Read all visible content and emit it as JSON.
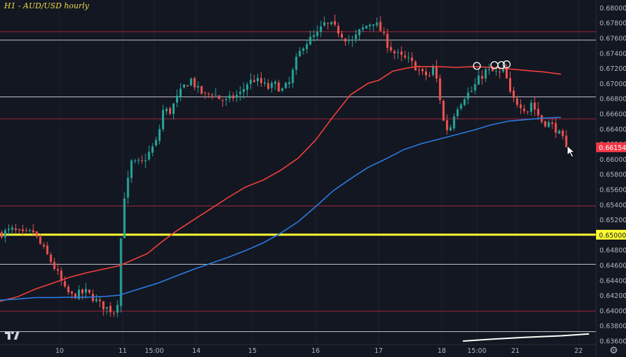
{
  "header": {
    "title": "H1 - AUD/USD hourly"
  },
  "icons": {
    "logo": "tradingview-logo-icon",
    "settings": "settings-gear-icon",
    "cursor": "mouse-pointer-icon"
  },
  "colors": {
    "background": "#131722",
    "up": "#26a69a",
    "down": "#ef5350",
    "ma_fast": "#f23f3a",
    "ma_slow": "#2a7be0",
    "level_red": "#b2293a",
    "level_white": "#d1d4dc",
    "level_yellow": "#ffff33",
    "axis_text": "#b2b5be",
    "price_tag": "#f23645"
  },
  "chart_data": {
    "type": "candlestick",
    "title": "H1 - AUD/USD hourly",
    "ylim": [
      0.6355,
      0.681
    ],
    "y_ticks": [
      "0.68000",
      "0.67800",
      "0.67600",
      "0.67400",
      "0.67200",
      "0.67000",
      "0.66800",
      "0.66600",
      "0.66400",
      "0.66200",
      "0.66000",
      "0.65800",
      "0.65600",
      "0.65400",
      "0.65200",
      "0.65000",
      "0.64800",
      "0.64600",
      "0.64400",
      "0.64200",
      "0.64000",
      "0.63800",
      "0.63600"
    ],
    "x_ticks": [
      {
        "label": "10",
        "t": 17
      },
      {
        "label": "11",
        "t": 35
      },
      {
        "label": "15:00",
        "t": 44
      },
      {
        "label": "14",
        "t": 56
      },
      {
        "label": "15",
        "t": 72
      },
      {
        "label": "16",
        "t": 90
      },
      {
        "label": "17",
        "t": 108
      },
      {
        "label": "18",
        "t": 126
      },
      {
        "label": "15:00",
        "t": 136
      },
      {
        "label": "21",
        "t": 147
      },
      {
        "label": "22",
        "t": 165
      }
    ],
    "x_range": [
      0,
      170
    ],
    "current_price": "0.66154",
    "current_value": 0.66154,
    "highlighted_level": "0.65000",
    "horizontal_levels": [
      {
        "value": 0.6768,
        "color": "red"
      },
      {
        "value": 0.6757,
        "color": "white"
      },
      {
        "value": 0.6682,
        "color": "white"
      },
      {
        "value": 0.6653,
        "color": "red"
      },
      {
        "value": 0.6538,
        "color": "red"
      },
      {
        "value": 0.65,
        "color": "yellow"
      },
      {
        "value": 0.6461,
        "color": "white"
      },
      {
        "value": 0.6399,
        "color": "red"
      },
      {
        "value": 0.6372,
        "color": "white"
      }
    ],
    "price_path": [
      [
        0,
        0.6502
      ],
      [
        3,
        0.6506
      ],
      [
        6,
        0.65
      ],
      [
        9,
        0.6504
      ],
      [
        10,
        0.6495
      ],
      [
        12,
        0.648
      ],
      [
        14,
        0.6465
      ],
      [
        16,
        0.6448
      ],
      [
        18,
        0.6427
      ],
      [
        20,
        0.6419
      ],
      [
        22,
        0.6422
      ],
      [
        24,
        0.6424
      ],
      [
        26,
        0.6417
      ],
      [
        28,
        0.6408
      ],
      [
        30,
        0.6403
      ],
      [
        32,
        0.6399
      ],
      [
        33,
        0.6412
      ],
      [
        34,
        0.6495
      ],
      [
        35,
        0.6552
      ],
      [
        36,
        0.6571
      ],
      [
        37,
        0.6595
      ],
      [
        38,
        0.6594
      ],
      [
        40,
        0.6595
      ],
      [
        42,
        0.6608
      ],
      [
        44,
        0.6622
      ],
      [
        45,
        0.664
      ],
      [
        46,
        0.6664
      ],
      [
        48,
        0.6663
      ],
      [
        50,
        0.668
      ],
      [
        52,
        0.6696
      ],
      [
        54,
        0.6705
      ],
      [
        56,
        0.6691
      ],
      [
        58,
        0.6684
      ],
      [
        60,
        0.6688
      ],
      [
        62,
        0.668
      ],
      [
        64,
        0.6676
      ],
      [
        66,
        0.6682
      ],
      [
        68,
        0.6686
      ],
      [
        70,
        0.67
      ],
      [
        72,
        0.6705
      ],
      [
        74,
        0.67
      ],
      [
        76,
        0.6694
      ],
      [
        78,
        0.6698
      ],
      [
        80,
        0.6691
      ],
      [
        82,
        0.67
      ],
      [
        84,
        0.673
      ],
      [
        86,
        0.6751
      ],
      [
        88,
        0.6758
      ],
      [
        90,
        0.6765
      ],
      [
        92,
        0.6778
      ],
      [
        94,
        0.6776
      ],
      [
        96,
        0.6769
      ],
      [
        98,
        0.676
      ],
      [
        100,
        0.6755
      ],
      [
        102,
        0.6768
      ],
      [
        104,
        0.6776
      ],
      [
        106,
        0.6782
      ],
      [
        108,
        0.677
      ],
      [
        110,
        0.6752
      ],
      [
        112,
        0.674
      ],
      [
        114,
        0.6734
      ],
      [
        116,
        0.673
      ],
      [
        118,
        0.6722
      ],
      [
        120,
        0.6712
      ],
      [
        122,
        0.671
      ],
      [
        123,
        0.672
      ],
      [
        124,
        0.6705
      ],
      [
        125,
        0.668
      ],
      [
        126,
        0.665
      ],
      [
        127,
        0.664
      ],
      [
        128,
        0.6643
      ],
      [
        129,
        0.666
      ],
      [
        130,
        0.667
      ],
      [
        132,
        0.6683
      ],
      [
        134,
        0.669
      ],
      [
        136,
        0.6705
      ],
      [
        138,
        0.6716
      ],
      [
        140,
        0.6715
      ],
      [
        142,
        0.6713
      ],
      [
        143,
        0.6717
      ],
      [
        144,
        0.6705
      ],
      [
        145,
        0.6685
      ],
      [
        146,
        0.6678
      ],
      [
        148,
        0.6672
      ],
      [
        150,
        0.6664
      ],
      [
        151,
        0.6675
      ],
      [
        152,
        0.6666
      ],
      [
        154,
        0.665
      ],
      [
        156,
        0.6647
      ],
      [
        158,
        0.664
      ],
      [
        160,
        0.6625
      ],
      [
        161,
        0.66154
      ]
    ],
    "series": [
      {
        "kind": "moving-average",
        "color": "red",
        "points": [
          [
            0,
            0.6412
          ],
          [
            5,
            0.6418
          ],
          [
            10,
            0.6428
          ],
          [
            15,
            0.6436
          ],
          [
            20,
            0.6444
          ],
          [
            25,
            0.645
          ],
          [
            30,
            0.6455
          ],
          [
            34,
            0.6459
          ],
          [
            38,
            0.6467
          ],
          [
            42,
            0.6475
          ],
          [
            46,
            0.649
          ],
          [
            50,
            0.6504
          ],
          [
            55,
            0.6519
          ],
          [
            60,
            0.6534
          ],
          [
            65,
            0.6549
          ],
          [
            70,
            0.6563
          ],
          [
            75,
            0.6572
          ],
          [
            80,
            0.6585
          ],
          [
            85,
            0.6601
          ],
          [
            90,
            0.6625
          ],
          [
            95,
            0.6656
          ],
          [
            100,
            0.6685
          ],
          [
            105,
            0.67
          ],
          [
            108,
            0.6704
          ],
          [
            112,
            0.6716
          ],
          [
            116,
            0.672
          ],
          [
            119,
            0.6722
          ],
          [
            125,
            0.6722
          ],
          [
            130,
            0.6721
          ],
          [
            135,
            0.6722
          ],
          [
            140,
            0.6721
          ],
          [
            145,
            0.6719
          ],
          [
            150,
            0.6717
          ],
          [
            155,
            0.6715
          ],
          [
            160,
            0.6712
          ]
        ]
      },
      {
        "kind": "moving-average",
        "color": "blue",
        "points": [
          [
            0,
            0.64135
          ],
          [
            5,
            0.6415
          ],
          [
            10,
            0.6417
          ],
          [
            15,
            0.6417
          ],
          [
            20,
            0.64175
          ],
          [
            25,
            0.64175
          ],
          [
            30,
            0.64185
          ],
          [
            34,
            0.642
          ],
          [
            38,
            0.6426
          ],
          [
            45,
            0.6436
          ],
          [
            50,
            0.6445
          ],
          [
            55,
            0.6454
          ],
          [
            60,
            0.6462
          ],
          [
            65,
            0.647
          ],
          [
            70,
            0.6479
          ],
          [
            75,
            0.6489
          ],
          [
            80,
            0.6502
          ],
          [
            85,
            0.6517
          ],
          [
            90,
            0.6537
          ],
          [
            95,
            0.6558
          ],
          [
            100,
            0.6574
          ],
          [
            105,
            0.6589
          ],
          [
            110,
            0.66
          ],
          [
            115,
            0.6612
          ],
          [
            120,
            0.662
          ],
          [
            125,
            0.6626
          ],
          [
            130,
            0.6632
          ],
          [
            135,
            0.6638
          ],
          [
            140,
            0.6645
          ],
          [
            145,
            0.665
          ],
          [
            150,
            0.6652
          ],
          [
            155,
            0.6654
          ],
          [
            160,
            0.6655
          ]
        ]
      },
      {
        "kind": "moving-average",
        "color": "white",
        "points": [
          [
            132,
            0.63595
          ],
          [
            140,
            0.6362
          ],
          [
            150,
            0.63645
          ],
          [
            160,
            0.63665
          ],
          [
            168,
            0.6369
          ]
        ]
      }
    ],
    "markers": [
      {
        "t": 136,
        "value": 0.6723
      },
      {
        "t": 141,
        "value": 0.6724
      },
      {
        "t": 143,
        "value": 0.6724
      },
      {
        "t": 144.5,
        "value": 0.6725
      }
    ]
  }
}
